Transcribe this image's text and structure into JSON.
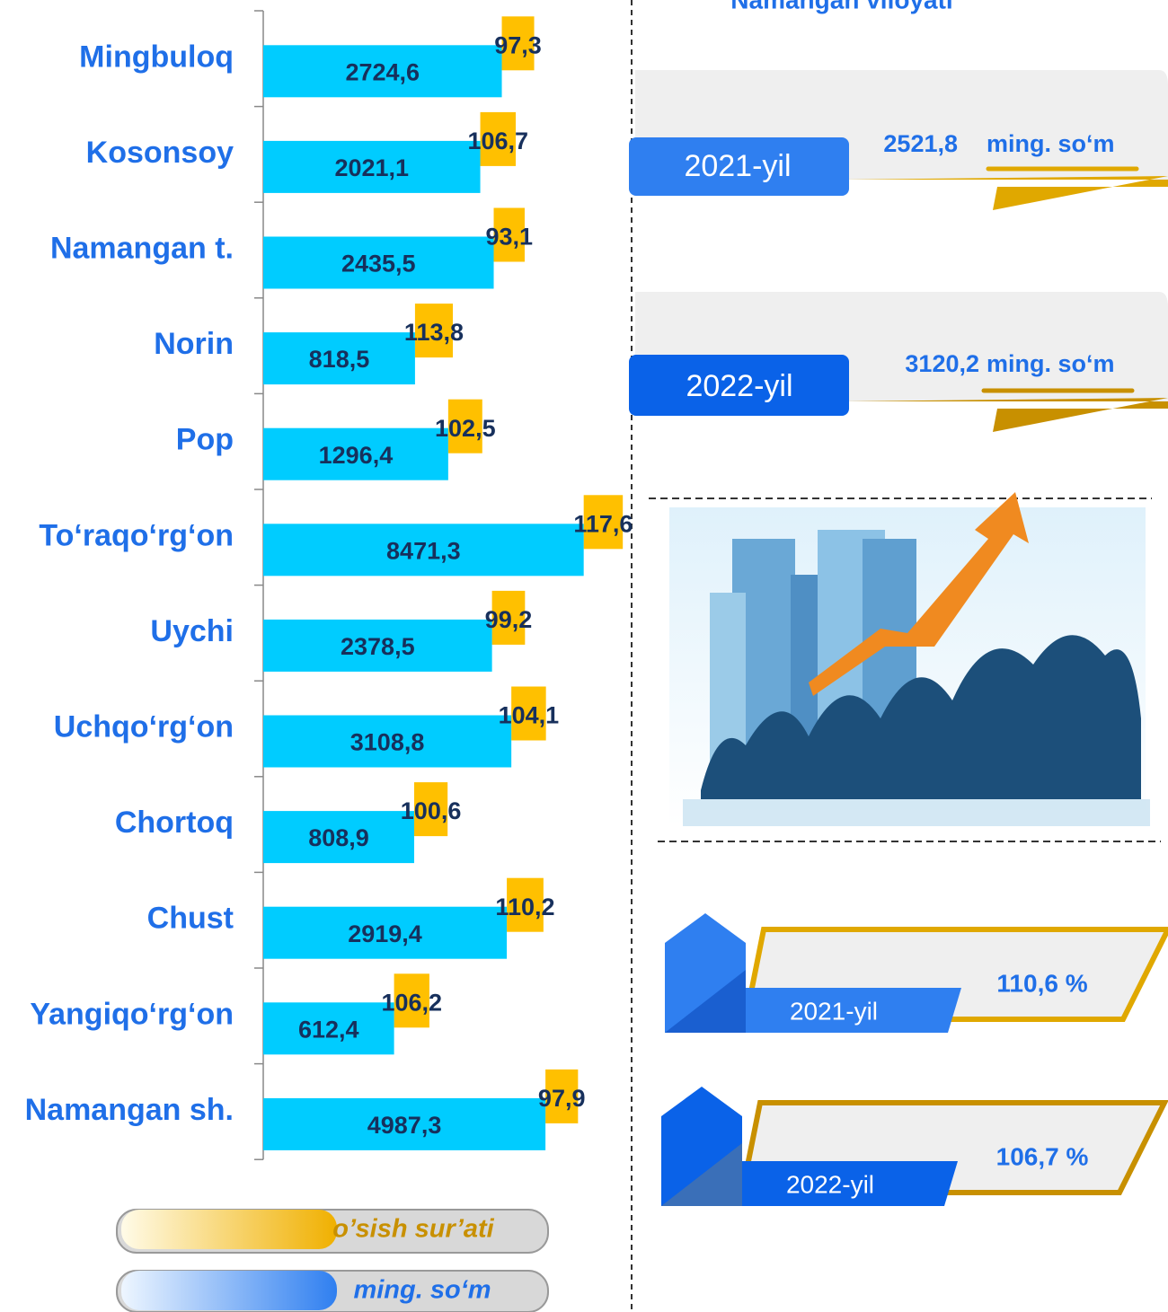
{
  "chart_data": {
    "type": "bar",
    "categories": [
      "Mingbuloq",
      "Kosonsoy",
      "Namangan t.",
      "Norin",
      "Pop",
      "To‘raqo‘rg‘on",
      "Uychi",
      "Uchqo‘rg‘on",
      "Chortoq",
      "Chust",
      "Yangiqo‘rg‘on",
      "Namangan sh."
    ],
    "series": [
      {
        "name": "ming. so‘m",
        "color": "#00ccff",
        "values": [
          2724.6,
          2021.1,
          2435.5,
          818.5,
          1296.4,
          8471.3,
          2378.5,
          3108.8,
          808.9,
          2919.4,
          612.4,
          4987.3
        ],
        "value_labels": [
          "2724,6",
          "2021,1",
          "2435,5",
          "818,5",
          "1296,4",
          "8471,3",
          "2378,5",
          "3108,8",
          "808,9",
          "2919,4",
          "612,4",
          "4987,3"
        ]
      },
      {
        "name": "o’sish sur’ati",
        "color": "#ffc000",
        "axis": "x2",
        "values": [
          97.3,
          106.7,
          93.1,
          113.8,
          102.5,
          117.6,
          99.2,
          104.1,
          100.6,
          110.2,
          106.2,
          97.9
        ],
        "value_labels": [
          "97,3",
          "106,7",
          "93,1",
          "113,8",
          "102,5",
          "117,6",
          "99,2",
          "104,1",
          "100,6",
          "110,2",
          "106,2",
          "97,9"
        ]
      }
    ],
    "xscale": "log",
    "xlim": [
      100,
      10000
    ],
    "x2lim": [
      0,
      1000
    ]
  },
  "panel": {
    "title": "Namangan viloyati",
    "income": [
      {
        "year": "2021-yil",
        "value": "2521,8",
        "unit": "ming. so‘m"
      },
      {
        "year": "2022-yil",
        "value": "3120,2",
        "unit": "ming. so‘m"
      }
    ],
    "growth": [
      {
        "year": "2021-yil",
        "value": "110,6 %"
      },
      {
        "year": "2022-yil",
        "value": "106,7 %"
      }
    ]
  }
}
